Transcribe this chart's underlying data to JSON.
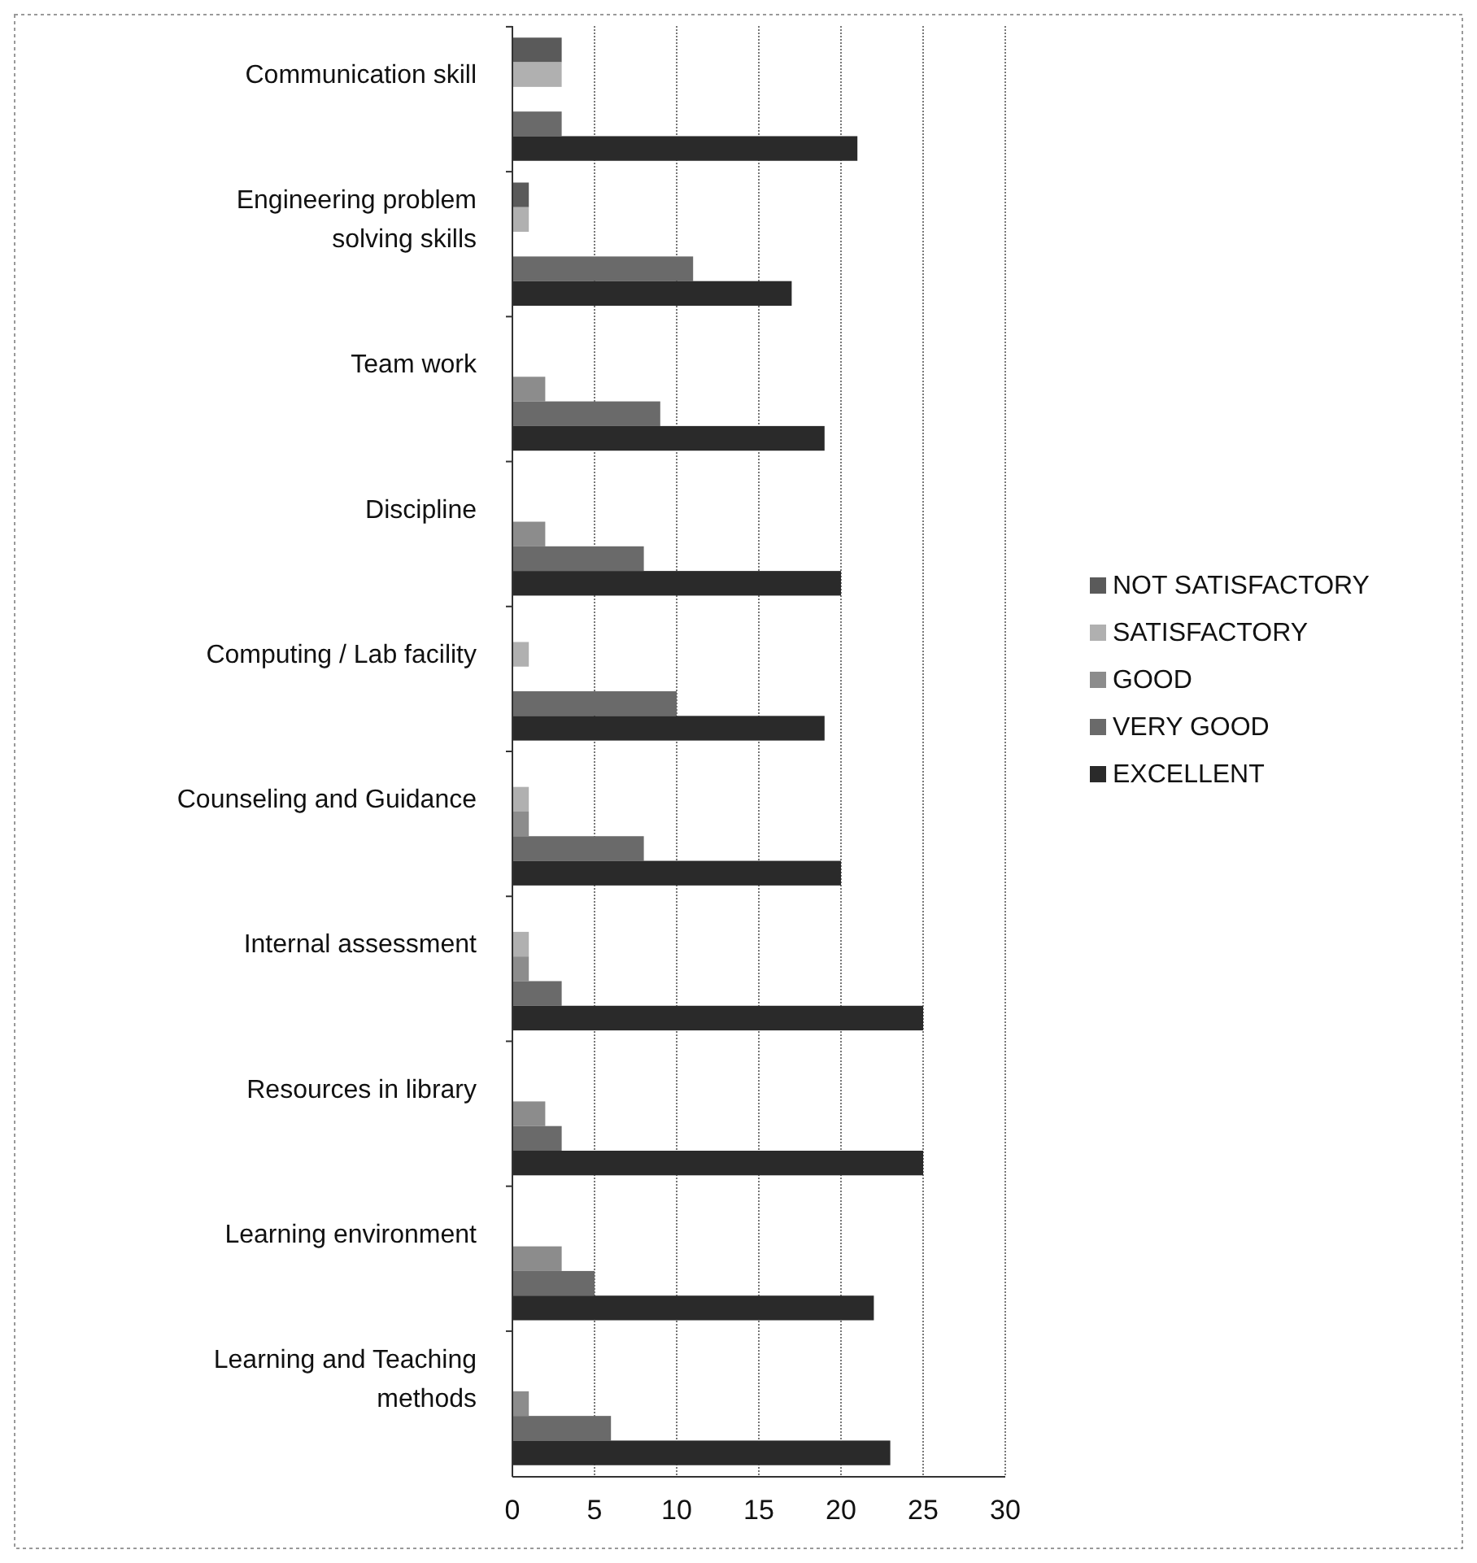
{
  "chart_data": {
    "type": "bar",
    "orientation": "horizontal",
    "categories": [
      "Communication skill",
      "Engineering problem solving skills",
      "Team work",
      "Discipline",
      "Computing / Lab facility",
      "Counseling and Guidance",
      "Internal assessment",
      "Resources in library",
      "Learning environment",
      "Learning and Teaching methods"
    ],
    "series": [
      {
        "name": "NOT SATISFACTORY",
        "color": "#5a5a5a",
        "values": [
          3,
          1,
          0,
          0,
          0,
          0,
          0,
          0,
          0,
          0
        ]
      },
      {
        "name": "SATISFACTORY",
        "color": "#b0b0b0",
        "values": [
          3,
          1,
          0,
          0,
          1,
          1,
          1,
          0,
          0,
          0
        ]
      },
      {
        "name": "GOOD",
        "color": "#8c8c8c",
        "values": [
          0,
          0,
          2,
          2,
          0,
          1,
          1,
          2,
          3,
          1
        ]
      },
      {
        "name": "VERY GOOD",
        "color": "#6a6a6a",
        "values": [
          3,
          11,
          9,
          8,
          10,
          8,
          3,
          3,
          5,
          6
        ]
      },
      {
        "name": "EXCELLENT",
        "color": "#2a2a2a",
        "values": [
          21,
          17,
          19,
          20,
          19,
          20,
          25,
          25,
          22,
          23
        ]
      }
    ],
    "xlim": [
      0,
      30
    ],
    "xticks": [
      0,
      5,
      10,
      15,
      20,
      25,
      30
    ],
    "grid": "x",
    "legend": "right"
  }
}
